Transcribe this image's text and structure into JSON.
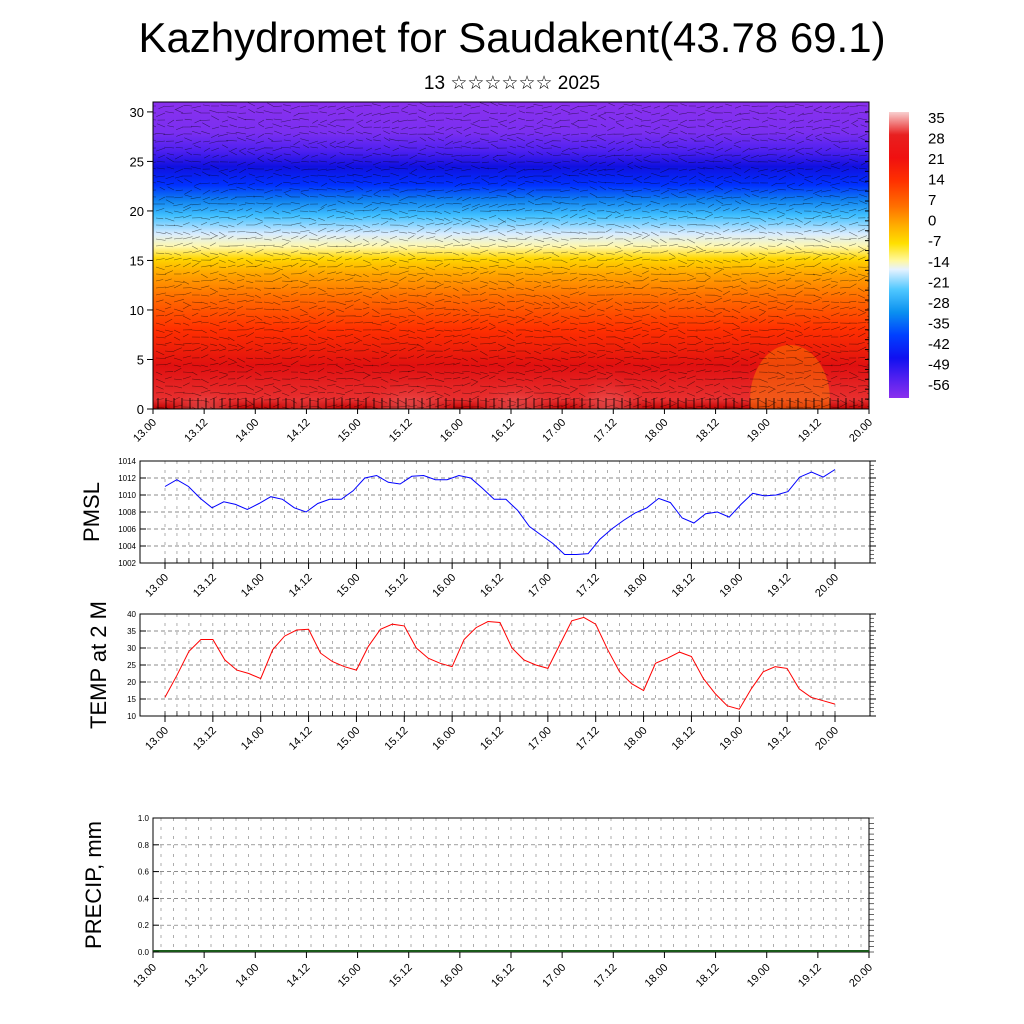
{
  "header": {
    "title": "Kazhydromet for Saudakent(43.78 69.1)",
    "subtitle": "13 ☆☆☆☆☆☆ 2025"
  },
  "chart_data": [
    {
      "type": "heatmap",
      "name": "temperature-wind-cross-section",
      "title": "",
      "x_ticks": [
        "13.00",
        "13.12",
        "14.00",
        "14.12",
        "15.00",
        "15.12",
        "16.00",
        "16.12",
        "17.00",
        "17.12",
        "18.00",
        "18.12",
        "19.00",
        "19.12",
        "20.00"
      ],
      "y_ticks": [
        0,
        5,
        10,
        15,
        20,
        25,
        30
      ],
      "ylim": [
        0,
        31
      ],
      "colorbar": {
        "labels": [
          "35",
          "28",
          "21",
          "14",
          "7",
          "0",
          "-7",
          "-14",
          "-21",
          "-28",
          "-35",
          "-42",
          "-49",
          "-56"
        ],
        "colors": [
          "#f5c6c6",
          "#e61a1a",
          "#ff3300",
          "#ff6600",
          "#ffa000",
          "#ffd200",
          "#fff870",
          "#cfe8ff",
          "#40c8ff",
          "#0aa0f0",
          "#0050ff",
          "#0018ff",
          "#3000ff",
          "#8a2be2"
        ]
      },
      "overlay": "wind-vectors"
    },
    {
      "type": "line",
      "ylabel": "PMSL",
      "ylim": [
        1002,
        1014
      ],
      "y_ticks": [
        1002,
        1004,
        1006,
        1008,
        1010,
        1012,
        1014
      ],
      "color": "#0000ff",
      "x_ticks": [
        "13.00",
        "13.12",
        "14.00",
        "14.12",
        "15.00",
        "15.12",
        "16.00",
        "16.12",
        "17.00",
        "17.12",
        "18.00",
        "18.12",
        "19.00",
        "19.12",
        "20.00"
      ],
      "values": [
        1011.0,
        1011.8,
        1011.0,
        1009.6,
        1008.5,
        1009.2,
        1008.9,
        1008.3,
        1009.0,
        1009.8,
        1009.5,
        1008.5,
        1008.0,
        1009.0,
        1009.5,
        1009.5,
        1010.5,
        1012.0,
        1012.3,
        1011.5,
        1011.3,
        1012.2,
        1012.3,
        1011.8,
        1011.8,
        1012.3,
        1012.0,
        1010.8,
        1009.5,
        1009.5,
        1008.2,
        1006.3,
        1005.3,
        1004.3,
        1003.0,
        1003.0,
        1003.1,
        1004.8,
        1006.0,
        1007.0,
        1007.9,
        1008.5,
        1009.6,
        1009.1,
        1007.3,
        1006.7,
        1007.8,
        1008.0,
        1007.4,
        1008.9,
        1010.2,
        1009.9,
        1010.0,
        1010.4,
        1012.1,
        1012.7,
        1012.1,
        1013.0
      ]
    },
    {
      "type": "line",
      "ylabel": "TEMP at 2 M",
      "ylim": [
        10,
        40
      ],
      "y_ticks": [
        10,
        15,
        20,
        25,
        30,
        35,
        40
      ],
      "color": "#ff0000",
      "x_ticks": [
        "13.00",
        "13.12",
        "14.00",
        "14.12",
        "15.00",
        "15.12",
        "16.00",
        "16.12",
        "17.00",
        "17.12",
        "18.00",
        "18.12",
        "19.00",
        "19.12",
        "20.00"
      ],
      "values": [
        15.5,
        22.0,
        29.0,
        32.5,
        32.5,
        26.5,
        23.5,
        22.5,
        21.0,
        29.5,
        33.5,
        35.3,
        35.5,
        28.5,
        26.0,
        24.5,
        23.5,
        30.5,
        35.5,
        37.0,
        36.5,
        30.0,
        27.0,
        25.5,
        24.5,
        32.5,
        36.0,
        37.8,
        37.5,
        30.0,
        26.5,
        25.0,
        24.0,
        31.0,
        38.0,
        39.0,
        37.0,
        29.5,
        23.0,
        19.5,
        17.5,
        25.5,
        27.0,
        28.8,
        27.5,
        21.0,
        16.5,
        13.0,
        12.0,
        18.0,
        23.0,
        24.5,
        24.0,
        18.0,
        15.5,
        14.5,
        13.5
      ]
    },
    {
      "type": "bar",
      "ylabel": "PRECIP, mm",
      "ylim": [
        0,
        1.0
      ],
      "y_ticks": [
        "0.0",
        "0.2",
        "0.4",
        "0.6",
        "0.8",
        "1.0"
      ],
      "x_ticks": [
        "13.00",
        "13.12",
        "14.00",
        "14.12",
        "15.00",
        "15.12",
        "16.00",
        "16.12",
        "17.00",
        "17.12",
        "18.00",
        "18.12",
        "19.00",
        "19.12",
        "20.00"
      ],
      "values": []
    }
  ]
}
